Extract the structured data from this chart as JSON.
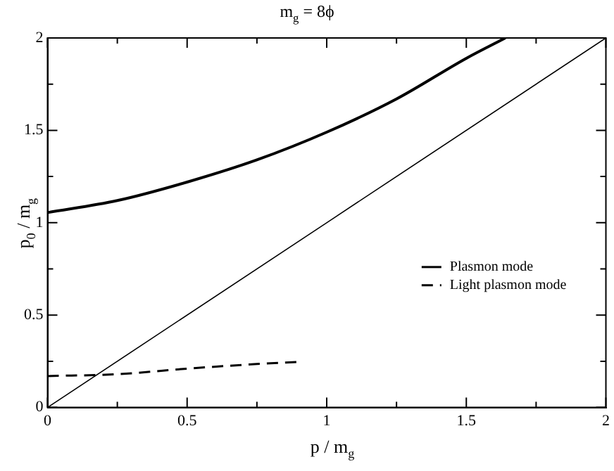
{
  "chart_data": {
    "type": "line",
    "title": "m$_{g}$ = 8ϕ",
    "xlabel": "p / m$_{g}$",
    "ylabel": "p$_{0}$ / m$_{g}$",
    "xlim": [
      0,
      2
    ],
    "ylim": [
      0,
      2
    ],
    "xticks": [
      0,
      {
        "value": 0.25,
        "label": null
      },
      0.5,
      {
        "value": 0.75,
        "label": null
      },
      1,
      {
        "value": 1.25,
        "label": null
      },
      1.5,
      {
        "value": 1.75,
        "label": null
      },
      2
    ],
    "yticks": [
      0,
      {
        "value": 0.25,
        "label": null
      },
      0.5,
      {
        "value": 0.75,
        "label": null
      },
      1,
      {
        "value": 1.25,
        "label": null
      },
      1.5,
      {
        "value": 1.75,
        "label": null
      },
      2
    ],
    "grid": false,
    "legend": "right",
    "marker": "none",
    "series": [
      {
        "name": "Plasmon mode",
        "color": "#000000",
        "line_style": "solid",
        "x": [
          0,
          0.25,
          0.5,
          0.75,
          1,
          1.25,
          1.5,
          1.64
        ],
        "values": [
          1.055,
          1.12,
          1.22,
          1.34,
          1.49,
          1.67,
          1.89,
          2
        ]
      },
      {
        "name": "Light plasmon mode",
        "color": "#000000",
        "line_style": "dashed",
        "x": [
          0,
          0.25,
          0.5,
          0.75,
          0.9
        ],
        "values": [
          0.17,
          0.18,
          0.21,
          0.235,
          0.246
        ]
      },
      {
        "color": "#000000",
        "line_style": "solid",
        "x": [
          0,
          2
        ],
        "values": [
          0,
          2
        ]
      }
    ]
  }
}
